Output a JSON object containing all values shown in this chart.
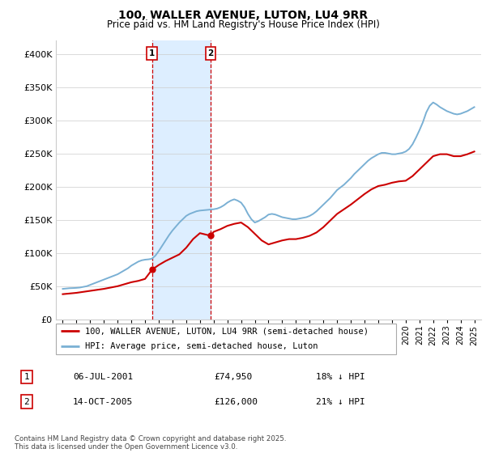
{
  "title": "100, WALLER AVENUE, LUTON, LU4 9RR",
  "subtitle": "Price paid vs. HM Land Registry's House Price Index (HPI)",
  "legend_line1": "100, WALLER AVENUE, LUTON, LU4 9RR (semi-detached house)",
  "legend_line2": "HPI: Average price, semi-detached house, Luton",
  "footnote": "Contains HM Land Registry data © Crown copyright and database right 2025.\nThis data is licensed under the Open Government Licence v3.0.",
  "transaction1_label": "1",
  "transaction1_date": "06-JUL-2001",
  "transaction1_price": "£74,950",
  "transaction1_hpi": "18% ↓ HPI",
  "transaction2_label": "2",
  "transaction2_date": "14-OCT-2005",
  "transaction2_price": "£126,000",
  "transaction2_hpi": "21% ↓ HPI",
  "purchase_dates": [
    2001.51,
    2005.79
  ],
  "purchase_prices": [
    74950,
    126000
  ],
  "vline_dates": [
    2001.51,
    2005.79
  ],
  "vline_color": "#cc0000",
  "highlight_color": "#ddeeff",
  "hpi_color": "#7ab0d4",
  "price_color": "#cc0000",
  "ylim": [
    0,
    420000
  ],
  "xlim": [
    1994.5,
    2025.5
  ],
  "yticks": [
    0,
    50000,
    100000,
    150000,
    200000,
    250000,
    300000,
    350000,
    400000
  ],
  "ytick_labels": [
    "£0",
    "£50K",
    "£100K",
    "£150K",
    "£200K",
    "£250K",
    "£300K",
    "£350K",
    "£400K"
  ],
  "xticks": [
    1995,
    1996,
    1997,
    1998,
    1999,
    2000,
    2001,
    2002,
    2003,
    2004,
    2005,
    2006,
    2007,
    2008,
    2009,
    2010,
    2011,
    2012,
    2013,
    2014,
    2015,
    2016,
    2017,
    2018,
    2019,
    2020,
    2021,
    2022,
    2023,
    2024,
    2025
  ],
  "hpi_years": [
    1995.0,
    1995.25,
    1995.5,
    1995.75,
    1996.0,
    1996.25,
    1996.5,
    1996.75,
    1997.0,
    1997.25,
    1997.5,
    1997.75,
    1998.0,
    1998.25,
    1998.5,
    1998.75,
    1999.0,
    1999.25,
    1999.5,
    1999.75,
    2000.0,
    2000.25,
    2000.5,
    2000.75,
    2001.0,
    2001.25,
    2001.5,
    2001.75,
    2002.0,
    2002.25,
    2002.5,
    2002.75,
    2003.0,
    2003.25,
    2003.5,
    2003.75,
    2004.0,
    2004.25,
    2004.5,
    2004.75,
    2005.0,
    2005.25,
    2005.5,
    2005.75,
    2006.0,
    2006.25,
    2006.5,
    2006.75,
    2007.0,
    2007.25,
    2007.5,
    2007.75,
    2008.0,
    2008.25,
    2008.5,
    2008.75,
    2009.0,
    2009.25,
    2009.5,
    2009.75,
    2010.0,
    2010.25,
    2010.5,
    2010.75,
    2011.0,
    2011.25,
    2011.5,
    2011.75,
    2012.0,
    2012.25,
    2012.5,
    2012.75,
    2013.0,
    2013.25,
    2013.5,
    2013.75,
    2014.0,
    2014.25,
    2014.5,
    2014.75,
    2015.0,
    2015.25,
    2015.5,
    2015.75,
    2016.0,
    2016.25,
    2016.5,
    2016.75,
    2017.0,
    2017.25,
    2017.5,
    2017.75,
    2018.0,
    2018.25,
    2018.5,
    2018.75,
    2019.0,
    2019.25,
    2019.5,
    2019.75,
    2020.0,
    2020.25,
    2020.5,
    2020.75,
    2021.0,
    2021.25,
    2021.5,
    2021.75,
    2022.0,
    2022.25,
    2022.5,
    2022.75,
    2023.0,
    2023.25,
    2023.5,
    2023.75,
    2024.0,
    2024.25,
    2024.5,
    2024.75,
    2025.0
  ],
  "hpi_values": [
    46000,
    46500,
    47000,
    47200,
    47500,
    48000,
    49000,
    50000,
    52000,
    54000,
    56000,
    58000,
    60000,
    62000,
    64000,
    66000,
    68000,
    71000,
    74000,
    77000,
    81000,
    84000,
    87000,
    89000,
    90000,
    90500,
    91400,
    96000,
    103000,
    111000,
    119000,
    127000,
    134000,
    140000,
    146000,
    151000,
    156000,
    159000,
    161000,
    163000,
    164000,
    164500,
    165000,
    165500,
    166000,
    167000,
    169000,
    172000,
    176000,
    179000,
    181000,
    179000,
    176000,
    169000,
    159000,
    151000,
    146000,
    148000,
    151000,
    154000,
    158000,
    159000,
    158000,
    156000,
    154000,
    153000,
    152000,
    151000,
    151000,
    152000,
    153000,
    154000,
    156000,
    159000,
    163000,
    168000,
    173000,
    178000,
    183000,
    189000,
    195000,
    199000,
    203000,
    208000,
    213000,
    219000,
    224000,
    229000,
    234000,
    239000,
    243000,
    246000,
    249000,
    251000,
    251000,
    250000,
    249000,
    249000,
    250000,
    251000,
    253000,
    257000,
    264000,
    274000,
    285000,
    297000,
    312000,
    322000,
    327000,
    324000,
    320000,
    317000,
    314000,
    312000,
    310000,
    309000,
    310000,
    312000,
    314000,
    317000,
    320000
  ],
  "price_years": [
    1995.0,
    1995.5,
    1996.0,
    1996.5,
    1997.0,
    1997.5,
    1998.0,
    1998.5,
    1999.0,
    1999.5,
    2000.0,
    2000.5,
    2001.0,
    2001.51,
    2002.0,
    2002.5,
    2003.0,
    2003.5,
    2004.0,
    2004.5,
    2005.0,
    2005.79,
    2006.0,
    2006.5,
    2007.0,
    2007.5,
    2008.0,
    2008.5,
    2009.0,
    2009.5,
    2010.0,
    2010.5,
    2011.0,
    2011.5,
    2012.0,
    2012.5,
    2013.0,
    2013.5,
    2014.0,
    2014.5,
    2015.0,
    2015.5,
    2016.0,
    2016.5,
    2017.0,
    2017.5,
    2018.0,
    2018.5,
    2019.0,
    2019.5,
    2020.0,
    2020.5,
    2021.0,
    2021.5,
    2022.0,
    2022.5,
    2023.0,
    2023.5,
    2024.0,
    2024.5,
    2025.0
  ],
  "price_values": [
    38000,
    39000,
    40000,
    41500,
    43000,
    44500,
    46000,
    48000,
    50000,
    53000,
    56000,
    58000,
    61000,
    74950,
    82000,
    88000,
    93000,
    98000,
    108000,
    121000,
    130000,
    126000,
    132000,
    136000,
    141000,
    144000,
    146000,
    139000,
    129000,
    119000,
    113000,
    116000,
    119000,
    121000,
    121000,
    123000,
    126000,
    131000,
    139000,
    149000,
    159000,
    166000,
    173000,
    181000,
    189000,
    196000,
    201000,
    203000,
    206000,
    208000,
    209000,
    216000,
    226000,
    236000,
    246000,
    249000,
    249000,
    246000,
    246000,
    249000,
    253000
  ]
}
